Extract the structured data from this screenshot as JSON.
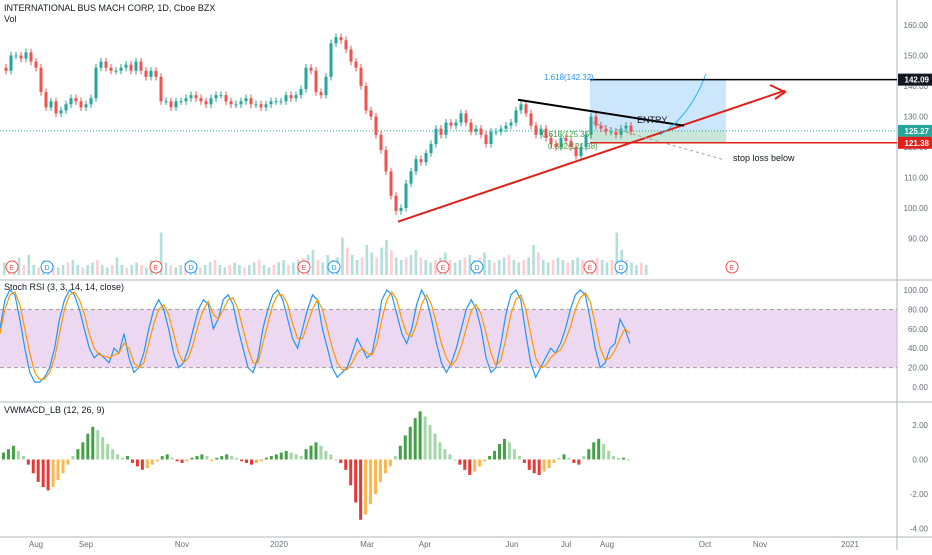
{
  "header": {
    "symbol": "INTERNATIONAL BUS MACH CORP, 1D, Cboe BZX",
    "volume_label": "Vol"
  },
  "panes": {
    "rsi": {
      "title": "Stoch RSI (3, 3, 14, 14, close)"
    },
    "macd": {
      "title": "VWMACD_LB (12, 26, 9)"
    }
  },
  "x_axis": {
    "labels": [
      "Aug",
      "Sep",
      "Nov",
      "2020",
      "Mar",
      "Apr",
      "Jun",
      "Jul",
      "Aug",
      "Oct",
      "Nov",
      "2021"
    ]
  },
  "annotations": {
    "fib_1618": "1.618(142.32)",
    "fib_0618": "0.618(125.35)",
    "fib_0382": "0.382(121.38)",
    "entry": "ENTRY",
    "stop_loss": "stop loss below",
    "event_e": "E",
    "event_d": "D"
  },
  "price_badges": {
    "top": "142.09",
    "current": "125.27",
    "stop": "121.38"
  },
  "colors": {
    "up": "#26a69a",
    "down": "#ef5350",
    "rsi_k": "#2196f3",
    "rsi_d": "#ff9800",
    "rsi_band": "#e1bee7",
    "fib_zone": "#bbdefb",
    "trend": "#e0201b",
    "current": "#26a69a"
  },
  "chart_data": [
    {
      "type": "candlestick",
      "title": "INTERNATIONAL BUS MACH CORP, 1D, Cboe BZX",
      "y_ticks": [
        160,
        150,
        140,
        130,
        120,
        110,
        100,
        90
      ],
      "ylim": [
        85,
        165
      ],
      "x_labels": [
        "Aug",
        "Sep",
        "Nov",
        "2020",
        "Mar",
        "Apr",
        "Jun",
        "Jul",
        "Aug",
        "Oct",
        "Nov",
        "2021"
      ],
      "series": [
        {
          "name": "Close",
          "points": [
            [
              0,
              146
            ],
            [
              5,
              145
            ],
            [
              10,
              150
            ],
            [
              15,
              150
            ],
            [
              20,
              149
            ],
            [
              25,
              151
            ],
            [
              30,
              148
            ],
            [
              35,
              146
            ],
            [
              40,
              138
            ],
            [
              45,
              133
            ],
            [
              50,
              135
            ],
            [
              55,
              131
            ],
            [
              60,
              132
            ],
            [
              65,
              134
            ],
            [
              70,
              136
            ],
            [
              75,
              135
            ],
            [
              80,
              133
            ],
            [
              85,
              134
            ],
            [
              90,
              136
            ],
            [
              95,
              146
            ],
            [
              100,
              148
            ],
            [
              105,
              146
            ],
            [
              110,
              145
            ],
            [
              115,
              145
            ],
            [
              120,
              146
            ],
            [
              125,
              147
            ],
            [
              130,
              145
            ],
            [
              135,
              148
            ],
            [
              140,
              145
            ],
            [
              145,
              143
            ],
            [
              150,
              145
            ],
            [
              155,
              143
            ],
            [
              160,
              135
            ],
            [
              165,
              135
            ],
            [
              170,
              133
            ],
            [
              175,
              135
            ],
            [
              180,
              135
            ],
            [
              185,
              136
            ],
            [
              190,
              137
            ],
            [
              195,
              136
            ],
            [
              200,
              135
            ],
            [
              205,
              134
            ],
            [
              210,
              136
            ],
            [
              215,
              137
            ],
            [
              220,
              137
            ],
            [
              225,
              135
            ],
            [
              230,
              134
            ],
            [
              235,
              134
            ],
            [
              240,
              135
            ],
            [
              245,
              136
            ],
            [
              250,
              134
            ],
            [
              255,
              134
            ],
            [
              260,
              133
            ],
            [
              265,
              134
            ],
            [
              270,
              135
            ],
            [
              275,
              135
            ],
            [
              280,
              135
            ],
            [
              285,
              137
            ],
            [
              290,
              136
            ],
            [
              295,
              137
            ],
            [
              300,
              139
            ],
            [
              305,
              146
            ],
            [
              310,
              145
            ],
            [
              315,
              138
            ],
            [
              320,
              137
            ],
            [
              325,
              143
            ],
            [
              330,
              154
            ],
            [
              335,
              156
            ],
            [
              340,
              155
            ],
            [
              345,
              152
            ],
            [
              350,
              148
            ],
            [
              355,
              146
            ],
            [
              360,
              140
            ],
            [
              365,
              132
            ],
            [
              370,
              130
            ],
            [
              375,
              124
            ],
            [
              380,
              119
            ],
            [
              385,
              112
            ],
            [
              390,
              104
            ],
            [
              395,
              99
            ],
            [
              400,
              100
            ],
            [
              405,
              108
            ],
            [
              410,
              112
            ],
            [
              415,
              116
            ],
            [
              420,
              115
            ],
            [
              425,
              118
            ],
            [
              430,
              121
            ],
            [
              435,
              126
            ],
            [
              440,
              124
            ],
            [
              445,
              128
            ],
            [
              450,
              127
            ],
            [
              455,
              128
            ],
            [
              460,
              131
            ],
            [
              465,
              128
            ],
            [
              470,
              125
            ],
            [
              475,
              126
            ],
            [
              480,
              124
            ],
            [
              485,
              121
            ],
            [
              490,
              125
            ],
            [
              495,
              125
            ],
            [
              500,
              126
            ],
            [
              505,
              127
            ],
            [
              510,
              128
            ],
            [
              515,
              132
            ],
            [
              520,
              134
            ],
            [
              525,
              131
            ],
            [
              530,
              127
            ],
            [
              535,
              124
            ],
            [
              540,
              126
            ],
            [
              545,
              123
            ],
            [
              550,
              121
            ],
            [
              555,
              120
            ],
            [
              560,
              123
            ],
            [
              565,
              122
            ],
            [
              570,
              120
            ],
            [
              575,
              117
            ],
            [
              580,
              120
            ],
            [
              585,
              124
            ],
            [
              590,
              130
            ],
            [
              595,
              127
            ],
            [
              600,
              126
            ],
            [
              605,
              125
            ],
            [
              610,
              125
            ],
            [
              615,
              124
            ],
            [
              620,
              126
            ],
            [
              625,
              127
            ],
            [
              630,
              125
            ]
          ]
        },
        {
          "name": "Volume",
          "values": [
            0.25,
            0.2,
            0.3,
            0.35,
            0.2,
            0.4,
            0.2,
            0.15,
            0.3,
            0.25,
            0.2,
            0.15,
            0.2,
            0.25,
            0.3,
            0.2,
            0.15,
            0.2,
            0.25,
            0.3,
            0.2,
            0.15,
            0.2,
            0.35,
            0.2,
            0.15,
            0.2,
            0.25,
            0.2,
            0.15,
            0.3,
            0.25,
            0.85,
            0.25,
            0.2,
            0.15,
            0.2,
            0.25,
            0.3,
            0.2,
            0.15,
            0.2,
            0.25,
            0.3,
            0.2,
            0.15,
            0.2,
            0.25,
            0.2,
            0.15,
            0.2,
            0.25,
            0.3,
            0.2,
            0.15,
            0.2,
            0.25,
            0.3,
            0.2,
            0.25,
            0.3,
            0.35,
            0.4,
            0.5,
            0.3,
            0.25,
            0.4,
            0.3,
            0.35,
            0.75,
            0.55,
            0.4,
            0.3,
            0.35,
            0.6,
            0.45,
            0.35,
            0.55,
            0.7,
            0.5,
            0.35,
            0.3,
            0.35,
            0.4,
            0.5,
            0.35,
            0.3,
            0.25,
            0.3,
            0.35,
            0.45,
            0.3,
            0.25,
            0.3,
            0.35,
            0.4,
            0.3,
            0.35,
            0.45,
            0.3,
            0.25,
            0.3,
            0.35,
            0.4,
            0.3,
            0.25,
            0.3,
            0.35,
            0.6,
            0.45,
            0.3,
            0.25,
            0.3,
            0.35,
            0.3,
            0.25,
            0.3,
            0.35,
            0.3,
            0.25,
            0.3,
            0.35,
            0.3,
            0.25,
            0.3,
            0.85,
            0.5,
            0.3,
            0.25,
            0.2,
            0.25,
            0.2
          ]
        }
      ]
    },
    {
      "type": "line",
      "title": "Stoch RSI (3, 3, 14, 14, close)",
      "y_ticks": [
        100,
        80,
        60,
        40,
        20,
        0
      ],
      "ylim": [
        -5,
        105
      ],
      "series": [
        {
          "name": "K",
          "values": [
            60,
            90,
            100,
            95,
            70,
            40,
            15,
            5,
            5,
            10,
            20,
            40,
            70,
            90,
            100,
            95,
            80,
            60,
            40,
            30,
            35,
            30,
            25,
            40,
            35,
            55,
            30,
            15,
            20,
            35,
            60,
            80,
            90,
            80,
            60,
            35,
            20,
            25,
            40,
            60,
            80,
            90,
            85,
            60,
            70,
            90,
            95,
            85,
            60,
            40,
            20,
            15,
            30,
            60,
            80,
            95,
            100,
            90,
            70,
            50,
            40,
            60,
            80,
            95,
            90,
            60,
            40,
            20,
            10,
            15,
            20,
            35,
            50,
            40,
            30,
            35,
            60,
            90,
            100,
            95,
            75,
            55,
            45,
            60,
            85,
            100,
            90,
            70,
            45,
            25,
            15,
            25,
            40,
            60,
            80,
            90,
            80,
            60,
            30,
            15,
            20,
            45,
            75,
            95,
            100,
            90,
            55,
            25,
            10,
            20,
            30,
            40,
            35,
            45,
            60,
            80,
            95,
            100,
            95,
            70,
            40,
            20,
            25,
            40,
            45,
            70,
            60,
            45
          ]
        },
        {
          "name": "D",
          "values": [
            55,
            80,
            95,
            98,
            85,
            60,
            35,
            15,
            8,
            8,
            15,
            30,
            55,
            80,
            95,
            98,
            90,
            75,
            55,
            40,
            33,
            32,
            30,
            33,
            35,
            45,
            40,
            25,
            20,
            25,
            45,
            65,
            80,
            85,
            75,
            55,
            35,
            25,
            30,
            45,
            65,
            80,
            88,
            75,
            70,
            80,
            90,
            92,
            80,
            60,
            40,
            25,
            25,
            45,
            65,
            85,
            95,
            95,
            85,
            65,
            50,
            50,
            65,
            80,
            90,
            80,
            60,
            40,
            25,
            18,
            18,
            25,
            35,
            40,
            35,
            33,
            45,
            70,
            90,
            98,
            90,
            70,
            55,
            52,
            65,
            85,
            95,
            85,
            65,
            45,
            30,
            22,
            28,
            42,
            60,
            78,
            85,
            75,
            55,
            35,
            22,
            28,
            50,
            75,
            90,
            95,
            80,
            55,
            30,
            20,
            22,
            30,
            35,
            38,
            48,
            62,
            80,
            92,
            97,
            88,
            65,
            40,
            28,
            30,
            38,
            50,
            60,
            55
          ]
        }
      ]
    },
    {
      "type": "bar",
      "title": "VWMACD_LB (12, 26, 9)",
      "y_ticks": [
        2.0,
        0.0,
        -2.0,
        -4.0
      ],
      "ylim": [
        -4.5,
        3.0
      ],
      "series": [
        {
          "name": "Histogram",
          "values": [
            0.4,
            0.6,
            0.8,
            0.5,
            0.2,
            -0.3,
            -0.8,
            -1.3,
            -1.6,
            -1.8,
            -1.6,
            -1.2,
            -0.8,
            -0.3,
            0.2,
            0.6,
            1.0,
            1.5,
            1.9,
            1.7,
            1.3,
            0.9,
            0.6,
            0.3,
            0.1,
            0.2,
            -0.2,
            -0.4,
            -0.6,
            -0.5,
            -0.3,
            -0.1,
            0.2,
            0.3,
            0.1,
            -0.1,
            -0.2,
            -0.1,
            0.1,
            0.2,
            0.3,
            0.2,
            -0.1,
            0.1,
            0.2,
            0.3,
            0.2,
            0.1,
            -0.1,
            -0.2,
            -0.3,
            -0.2,
            -0.1,
            0.1,
            0.2,
            0.3,
            0.4,
            0.5,
            0.4,
            0.3,
            0.2,
            0.6,
            0.8,
            1.0,
            0.8,
            0.5,
            0.3,
            0.0,
            -0.2,
            -0.6,
            -1.5,
            -2.5,
            -3.5,
            -3.2,
            -2.6,
            -2.0,
            -1.3,
            -0.8,
            -0.4,
            0.2,
            0.8,
            1.4,
            1.9,
            2.4,
            2.8,
            2.5,
            2.0,
            1.5,
            1.0,
            0.6,
            0.3,
            0.0,
            -0.3,
            -0.6,
            -0.9,
            -0.7,
            -0.4,
            -0.1,
            0.2,
            0.5,
            0.9,
            1.2,
            1.0,
            0.6,
            0.2,
            -0.2,
            -0.6,
            -0.8,
            -0.9,
            -0.7,
            -0.5,
            -0.2,
            0.1,
            0.3,
            0.1,
            -0.2,
            -0.3,
            0.2,
            0.6,
            1.0,
            1.2,
            0.9,
            0.5,
            0.2,
            0.1,
            0.1,
            0.0
          ]
        }
      ]
    }
  ]
}
